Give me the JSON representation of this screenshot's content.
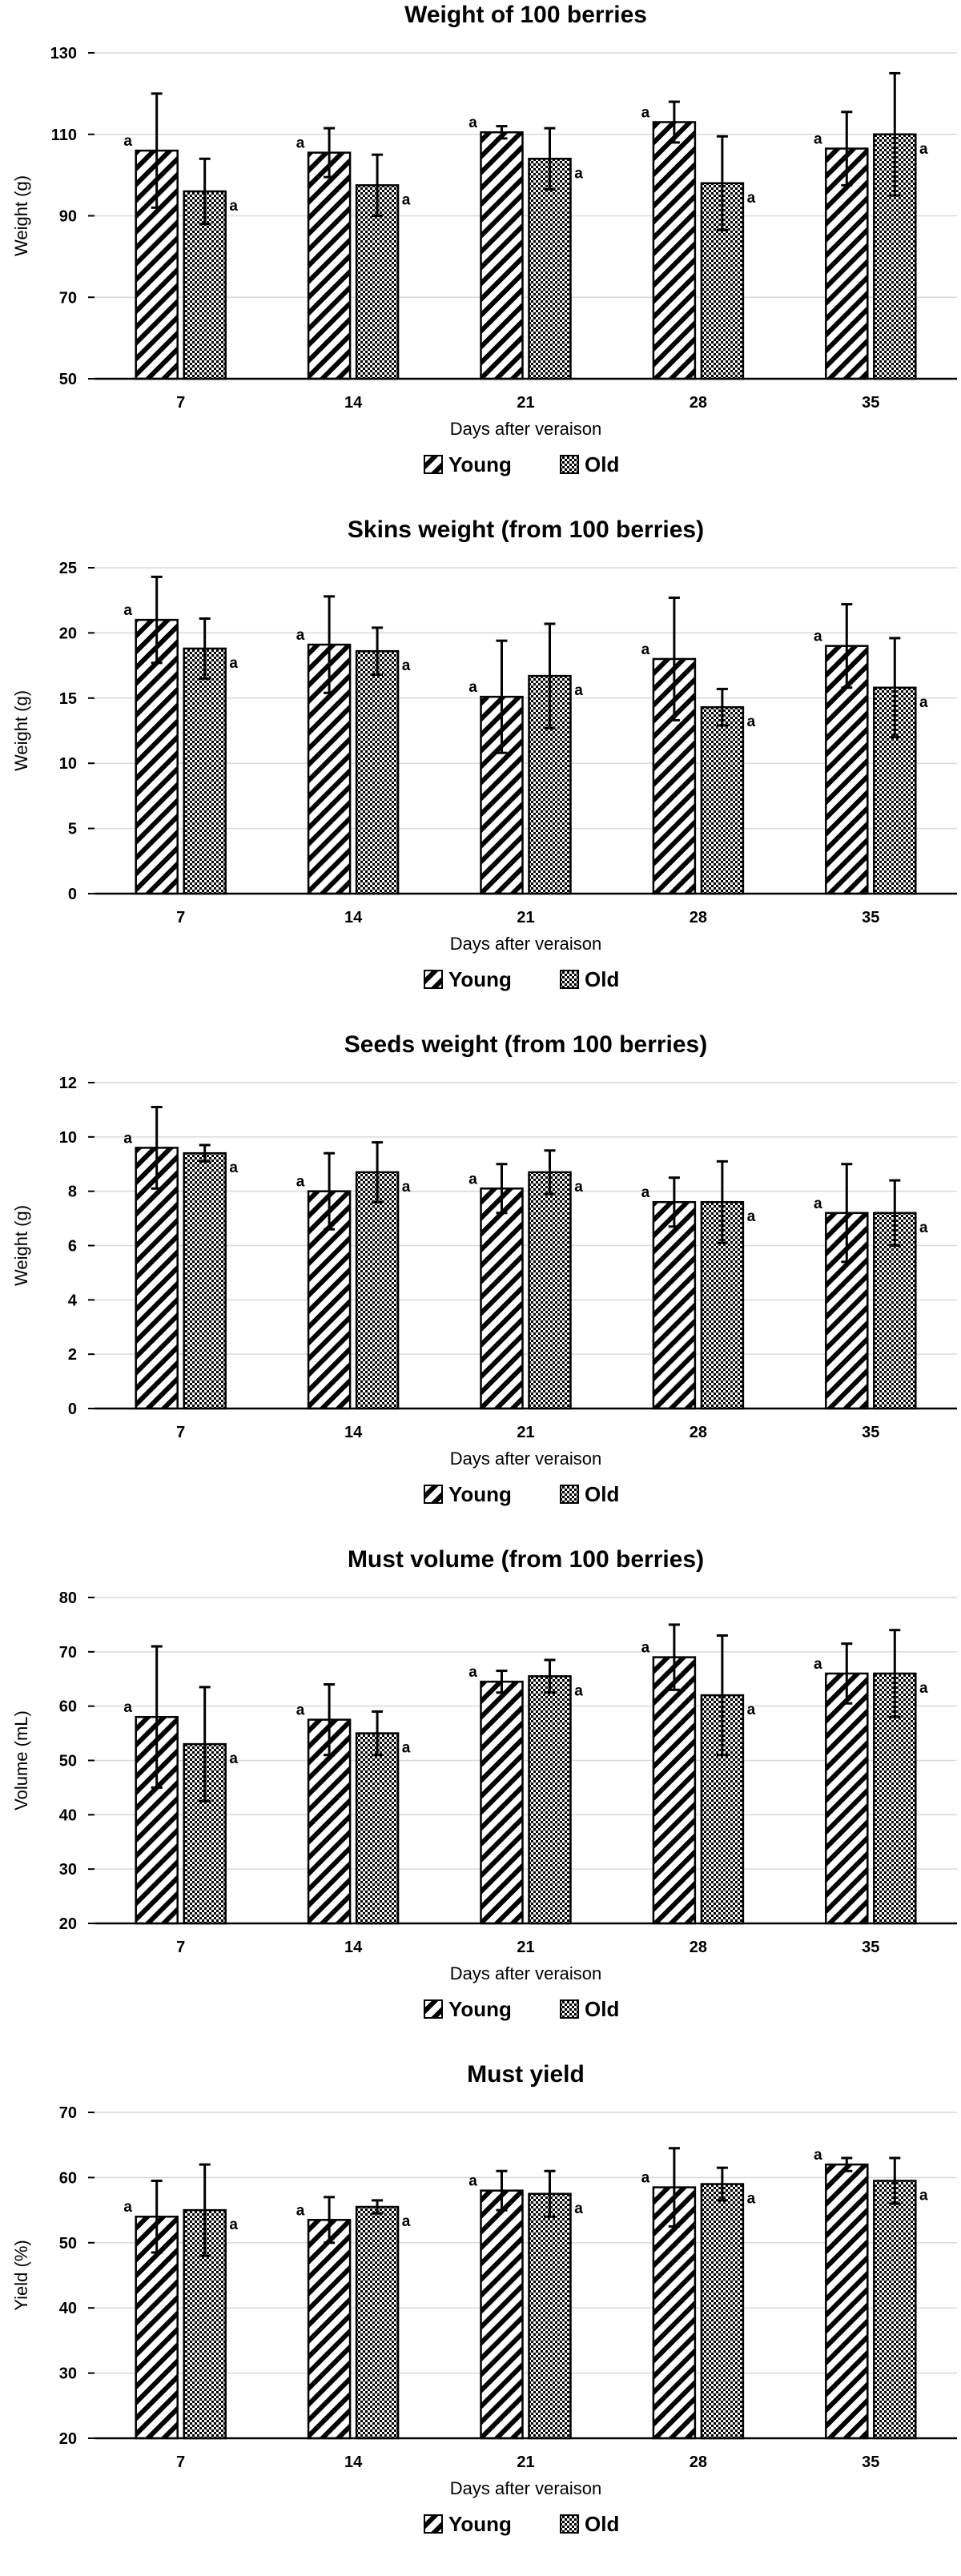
{
  "colors": {
    "background": "#ffffff",
    "bar_edge": "#000000",
    "grid": "#d9d9d9",
    "axis": "#000000"
  },
  "legend": {
    "young": "Young",
    "old": "Old"
  },
  "chart_data": [
    {
      "type": "bar",
      "title": "Weight of 100 berries",
      "xlabel": "Days after veraison",
      "ylabel": "Weight (g)",
      "ylim": [
        50,
        130
      ],
      "yticks": [
        50,
        70,
        90,
        110,
        130
      ],
      "categories": [
        "7",
        "14",
        "21",
        "28",
        "35"
      ],
      "series": [
        {
          "name": "Young",
          "values": [
            106,
            105.5,
            110.5,
            113,
            106.5
          ],
          "errors": [
            14,
            6,
            1.5,
            5,
            9
          ],
          "labels": [
            "a",
            "a",
            "a",
            "a",
            "a"
          ]
        },
        {
          "name": "Old",
          "values": [
            96,
            97.5,
            104,
            98,
            110
          ],
          "errors": [
            8,
            7.5,
            7.5,
            11.5,
            15
          ],
          "labels": [
            "a",
            "a",
            "a",
            "a",
            "a"
          ]
        }
      ]
    },
    {
      "type": "bar",
      "title": "Skins weight (from 100 berries)",
      "xlabel": "Days after veraison",
      "ylabel": "Weight (g)",
      "ylim": [
        0,
        25
      ],
      "yticks": [
        0,
        5,
        10,
        15,
        20,
        25
      ],
      "categories": [
        "7",
        "14",
        "21",
        "28",
        "35"
      ],
      "series": [
        {
          "name": "Young",
          "values": [
            21,
            19.1,
            15.1,
            18,
            19
          ],
          "errors": [
            3.3,
            3.7,
            4.3,
            4.7,
            3.2
          ],
          "labels": [
            "a",
            "a",
            "a",
            "a",
            "a"
          ]
        },
        {
          "name": "Old",
          "values": [
            18.8,
            18.6,
            16.7,
            14.3,
            15.8
          ],
          "errors": [
            2.3,
            1.8,
            4,
            1.4,
            3.8
          ],
          "labels": [
            "a",
            "a",
            "a",
            "a",
            "a"
          ]
        }
      ]
    },
    {
      "type": "bar",
      "title": "Seeds weight (from 100 berries)",
      "xlabel": "Days after veraison",
      "ylabel": "Weight (g)",
      "ylim": [
        0,
        12
      ],
      "yticks": [
        0,
        2,
        4,
        6,
        8,
        10,
        12
      ],
      "categories": [
        "7",
        "14",
        "21",
        "28",
        "35"
      ],
      "series": [
        {
          "name": "Young",
          "values": [
            9.6,
            8,
            8.1,
            7.6,
            7.2
          ],
          "errors": [
            1.5,
            1.4,
            0.9,
            0.9,
            1.8
          ],
          "labels": [
            "a",
            "a",
            "a",
            "a",
            "a"
          ]
        },
        {
          "name": "Old",
          "values": [
            9.4,
            8.7,
            8.7,
            7.6,
            7.2
          ],
          "errors": [
            0.3,
            1.1,
            0.8,
            1.5,
            1.2
          ],
          "labels": [
            "a",
            "a",
            "a",
            "a",
            "a"
          ]
        }
      ]
    },
    {
      "type": "bar",
      "title": "Must volume (from 100 berries)",
      "xlabel": "Days after veraison",
      "ylabel": "Volume (mL)",
      "ylim": [
        20,
        80
      ],
      "yticks": [
        20,
        30,
        40,
        50,
        60,
        70,
        80
      ],
      "categories": [
        "7",
        "14",
        "21",
        "28",
        "35"
      ],
      "series": [
        {
          "name": "Young",
          "values": [
            58,
            57.5,
            64.5,
            69,
            66
          ],
          "errors": [
            13,
            6.5,
            2,
            6,
            5.5
          ],
          "labels": [
            "a",
            "a",
            "a",
            "a",
            "a"
          ]
        },
        {
          "name": "Old",
          "values": [
            53,
            55,
            65.5,
            62,
            66
          ],
          "errors": [
            10.5,
            4,
            3,
            11,
            8
          ],
          "labels": [
            "a",
            "a",
            "a",
            "a",
            "a"
          ]
        }
      ]
    },
    {
      "type": "bar",
      "title": "Must yield",
      "xlabel": "Days after veraison",
      "ylabel": "Yield (%)",
      "ylim": [
        20,
        70
      ],
      "yticks": [
        20,
        30,
        40,
        50,
        60,
        70
      ],
      "categories": [
        "7",
        "14",
        "21",
        "28",
        "35"
      ],
      "series": [
        {
          "name": "Young",
          "values": [
            54,
            53.5,
            58,
            58.5,
            62
          ],
          "errors": [
            5.5,
            3.5,
            3,
            6,
            1
          ],
          "labels": [
            "a",
            "a",
            "a",
            "a",
            "a"
          ]
        },
        {
          "name": "Old",
          "values": [
            55,
            55.5,
            57.5,
            59,
            59.5
          ],
          "errors": [
            7,
            1,
            3.5,
            2.5,
            3.5
          ],
          "labels": [
            "a",
            "a",
            "a",
            "a",
            "a"
          ]
        }
      ]
    }
  ]
}
